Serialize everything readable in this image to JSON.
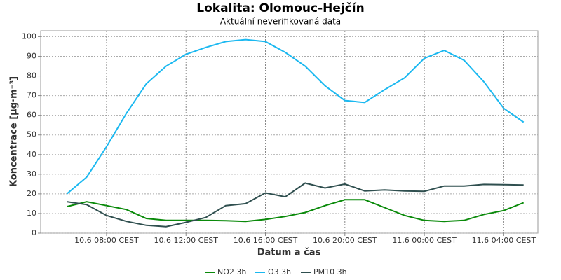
{
  "chart_data": {
    "type": "line",
    "title": "Lokalita: Olomouc-Hejčín",
    "subtitle": "Aktuální neverifikovaná data",
    "x_label": "Datum a čas",
    "y_label": "Koncentrace [µg·m⁻³]",
    "x": [
      "10.6 06:00",
      "10.6 07:00",
      "10.6 08:00",
      "10.6 09:00",
      "10.6 10:00",
      "10.6 11:00",
      "10.6 12:00",
      "10.6 13:00",
      "10.6 14:00",
      "10.6 15:00",
      "10.6 16:00",
      "10.6 17:00",
      "10.6 18:00",
      "10.6 19:00",
      "10.6 20:00",
      "10.6 21:00",
      "10.6 22:00",
      "10.6 23:00",
      "11.6 00:00",
      "11.6 01:00",
      "11.6 02:00",
      "11.6 03:00",
      "11.6 04:00",
      "11.6 05:00"
    ],
    "series": [
      {
        "name": "NO2 3h",
        "color": "#0a8a0a",
        "values": [
          13.5,
          16,
          14,
          12,
          7.5,
          6.5,
          6.5,
          6.5,
          6.3,
          6,
          7,
          8.5,
          10.5,
          14,
          17,
          17,
          13,
          9,
          6.5,
          6,
          6.5,
          9.5,
          11.5,
          15.5
        ]
      },
      {
        "name": "O3 3h",
        "color": "#1ab8f0",
        "values": [
          20,
          28.5,
          44,
          61,
          76,
          85,
          91,
          94.5,
          97.5,
          98.5,
          97.5,
          92,
          85,
          75,
          67.5,
          66.5,
          73,
          79,
          89,
          93,
          88,
          77,
          63.5,
          56.5
        ]
      },
      {
        "name": "PM10 3h",
        "color": "#2f4f4f",
        "values": [
          16,
          14.5,
          9,
          6,
          4,
          3.3,
          5.5,
          8,
          14,
          15,
          20.5,
          18.5,
          25.5,
          23,
          25,
          21.5,
          22,
          21.5,
          21.3,
          24,
          24,
          24.8,
          24.7,
          24.5
        ]
      }
    ],
    "xlim": [
      "10.6 04:41",
      "11.6 05:43"
    ],
    "xticks": [
      {
        "value": "10.6 08:00",
        "label": "10.6 08:00 CEST"
      },
      {
        "value": "10.6 12:00",
        "label": "10.6 12:00 CEST"
      },
      {
        "value": "10.6 16:00",
        "label": "10.6 16:00 CEST"
      },
      {
        "value": "10.6 20:00",
        "label": "10.6 20:00 CEST"
      },
      {
        "value": "11.6 00:00",
        "label": "11.6 00:00 CEST"
      },
      {
        "value": "11.6 04:00",
        "label": "11.6 04:00 CEST"
      }
    ],
    "ylim": [
      0,
      103
    ],
    "yticks": [
      0,
      10,
      20,
      30,
      40,
      50,
      60,
      70,
      80,
      90,
      100
    ],
    "grid": true,
    "legend": "bottom"
  }
}
